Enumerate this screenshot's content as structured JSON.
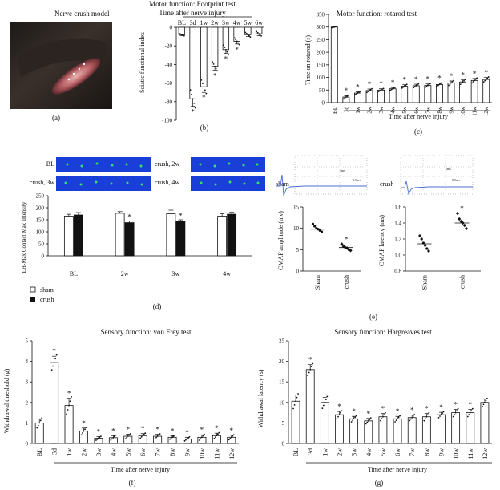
{
  "panel_labels": [
    "(a)",
    "(b)",
    "(c)",
    "(d)",
    "(e)",
    "(f)",
    "(g)"
  ],
  "photo": {
    "title": "Nerve crush model"
  },
  "chart_data": [
    {
      "id": "b",
      "type": "bar",
      "title": "Motor function: Footprint test",
      "subtitle": "Time after nerve injury",
      "categories": [
        "BL",
        "3d",
        "1w",
        "2w",
        "3w",
        "4w",
        "5w",
        "6w"
      ],
      "values": [
        -8,
        -77,
        -64,
        -42,
        -24,
        -15,
        -8,
        -7
      ],
      "errors": [
        1,
        8,
        6,
        4,
        4,
        3,
        2,
        2
      ],
      "significance": [
        "",
        "*",
        "*",
        "*",
        "*",
        "*",
        "",
        ""
      ],
      "ylabel": "Sciatic functional index",
      "ylim": [
        -100,
        0
      ],
      "yticks": [
        0,
        -20,
        -40,
        -60,
        -80,
        -100
      ]
    },
    {
      "id": "c",
      "type": "bar",
      "title": "Motor function: rotarod test",
      "xlabel": "Time after nerve injury",
      "categories": [
        "BL",
        "3d",
        "1w",
        "2w",
        "3w",
        "4w",
        "5w",
        "6w",
        "7w",
        "8w",
        "9w",
        "10w",
        "11w",
        "12w"
      ],
      "values": [
        300,
        22,
        38,
        48,
        50,
        55,
        65,
        67,
        68,
        72,
        78,
        82,
        88,
        92
      ],
      "errors": [
        2,
        6,
        5,
        6,
        5,
        5,
        6,
        6,
        6,
        6,
        8,
        8,
        8,
        8
      ],
      "significance": [
        "",
        "*",
        "*",
        "*",
        "*",
        "*",
        "*",
        "*",
        "*",
        "*",
        "*",
        "*",
        "*",
        "*"
      ],
      "ylabel": "Time on rotarod (s)",
      "ylim": [
        0,
        350
      ],
      "yticks": [
        0,
        50,
        100,
        150,
        200,
        250,
        300,
        350
      ]
    },
    {
      "id": "d",
      "type": "bar",
      "ylabel": "LH-Max Contact Max Intensity",
      "categories": [
        "BL",
        "2w",
        "3w",
        "4w"
      ],
      "series": [
        {
          "name": "sham",
          "values": [
            165,
            177,
            175,
            165
          ],
          "errors": [
            8,
            7,
            15,
            10
          ]
        },
        {
          "name": "crush",
          "values": [
            170,
            138,
            142,
            173
          ],
          "errors": [
            10,
            7,
            8,
            8
          ]
        }
      ],
      "significance": [
        "",
        "*",
        "*",
        ""
      ],
      "ylim": [
        0,
        250
      ],
      "yticks": [
        0,
        50,
        100,
        150,
        200,
        250
      ],
      "legend": "bottom-left"
    },
    {
      "id": "e1",
      "type": "scatter",
      "ylabel": "CMAP amplitude (mv)",
      "categories": [
        "Sham",
        "crush"
      ],
      "means": [
        9.8,
        5.5
      ],
      "points": [
        [
          11.0,
          10.5,
          10.0,
          9.8,
          9.5,
          9.2
        ],
        [
          6.3,
          5.8,
          5.5,
          5.4,
          5.0,
          4.8
        ]
      ],
      "significance": [
        "",
        "*"
      ],
      "ylim": [
        0,
        15
      ],
      "yticks": [
        0,
        5,
        10,
        15
      ]
    },
    {
      "id": "e2",
      "type": "scatter",
      "ylabel": "CMAP latency (ms)",
      "categories": [
        "Sham",
        "crush"
      ],
      "means": [
        1.14,
        1.4
      ],
      "points": [
        [
          1.24,
          1.2,
          1.15,
          1.12,
          1.08,
          1.05
        ],
        [
          1.52,
          1.45,
          1.42,
          1.4,
          1.37,
          1.33
        ]
      ],
      "significance": [
        "",
        "*"
      ],
      "ylim": [
        0.8,
        1.6
      ],
      "yticks": [
        0.8,
        1.0,
        1.2,
        1.4,
        1.6
      ]
    },
    {
      "id": "f",
      "type": "bar",
      "title": "Sensory function: von Frey test",
      "xlabel": "Time after nerve injury",
      "categories": [
        "BL",
        "3d",
        "1w",
        "2w",
        "3w",
        "4w",
        "5w",
        "6w",
        "7w",
        "8w",
        "9w",
        "10w",
        "11w",
        "12w"
      ],
      "values": [
        1.0,
        3.95,
        1.85,
        0.6,
        0.25,
        0.28,
        0.35,
        0.38,
        0.35,
        0.3,
        0.22,
        0.3,
        0.38,
        0.3
      ],
      "errors": [
        0.2,
        0.3,
        0.35,
        0.15,
        0.08,
        0.1,
        0.1,
        0.1,
        0.1,
        0.08,
        0.08,
        0.12,
        0.12,
        0.1
      ],
      "significance": [
        "",
        "*",
        "*",
        "*",
        "*",
        "*",
        "*",
        "*",
        "*",
        "*",
        "*",
        "*",
        "*",
        "*"
      ],
      "ylabel": "Withdrawal threshold (g)",
      "ylim": [
        0,
        5
      ],
      "yticks": [
        0,
        1,
        2,
        3,
        4,
        5
      ]
    },
    {
      "id": "g",
      "type": "bar",
      "title": "Sensory function: Hargreaves test",
      "xlabel": "Time after nerve injury",
      "categories": [
        "BL",
        "3d",
        "1w",
        "2w",
        "3w",
        "4w",
        "5w",
        "6w",
        "7w",
        "8w",
        "9w",
        "10w",
        "11w",
        "12w"
      ],
      "values": [
        10.3,
        18.0,
        10.0,
        7.0,
        6.0,
        5.5,
        6.5,
        6.0,
        6.3,
        6.5,
        7.0,
        7.5,
        7.5,
        10.0
      ],
      "errors": [
        1.5,
        1.2,
        1.2,
        0.8,
        0.6,
        0.6,
        0.8,
        0.6,
        0.6,
        0.8,
        0.6,
        0.8,
        0.8,
        0.8
      ],
      "significance": [
        "",
        "*",
        "",
        "*",
        "*",
        "*",
        "*",
        "*",
        "*",
        "*",
        "*",
        "*",
        "*",
        ""
      ],
      "ylabel": "Withdrawal latency (s)",
      "ylim": [
        0,
        25
      ],
      "yticks": [
        0,
        5,
        10,
        15,
        20,
        25
      ]
    }
  ],
  "footprint_images": [
    {
      "label": "BL"
    },
    {
      "label": "crush, 2w"
    },
    {
      "label": "crush, 3w"
    },
    {
      "label": "crush, 4w"
    }
  ],
  "traces": [
    {
      "label": "sham",
      "scale_x": "1ms",
      "scale_y": "0.5mv"
    },
    {
      "label": "crush",
      "scale_x": "1ms",
      "scale_y": "0.5mv"
    }
  ],
  "colors": {
    "black": "#111111",
    "trace": "#4a6fd0",
    "footprint_bg": "#1a3fd9",
    "footprint_dot": "#3adf6a"
  }
}
